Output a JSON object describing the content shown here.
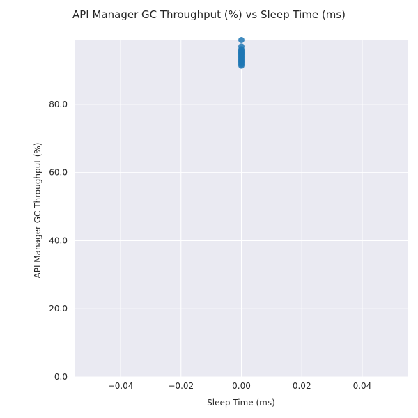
{
  "chart_data": {
    "type": "scatter",
    "title": "API Manager GC Throughput (%) vs Sleep Time (ms)",
    "xlabel": "Sleep Time (ms)",
    "ylabel": "API Manager GC Throughput (%)",
    "xlim": [
      -0.055,
      0.055
    ],
    "ylim": [
      0,
      99
    ],
    "xticks": [
      -0.04,
      -0.02,
      0.0,
      0.02,
      0.04
    ],
    "xtick_labels": [
      "−0.04",
      "−0.02",
      "0.00",
      "0.02",
      "0.04"
    ],
    "yticks": [
      0,
      20,
      40,
      60,
      80
    ],
    "ytick_labels": [
      "0.0",
      "20.0",
      "40.0",
      "60.0",
      "80.0"
    ],
    "grid": true,
    "legend": "none",
    "point_color": "#1f77b4",
    "background_color": "#eaeaf2",
    "series": [
      {
        "x": [
          0,
          0,
          0,
          0,
          0,
          0,
          0,
          0,
          0,
          0,
          0,
          0,
          0,
          0,
          0,
          0,
          0,
          0
        ],
        "y": [
          98.9,
          97.0,
          96.2,
          95.8,
          95.5,
          95.2,
          94.9,
          94.6,
          94.3,
          94.0,
          93.7,
          93.4,
          93.1,
          92.8,
          92.5,
          92.2,
          91.8,
          91.4
        ]
      }
    ]
  }
}
